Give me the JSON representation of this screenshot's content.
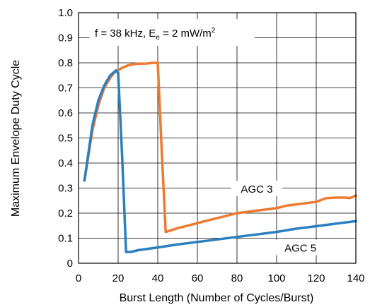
{
  "chart_data": {
    "type": "line",
    "title": "",
    "annotation": {
      "prefix": "f = 38 kHz, E",
      "sub": "e",
      "mid": " = 2 mW/m",
      "sup": "2"
    },
    "xlabel": "Burst Length (Number of Cycles/Burst)",
    "ylabel": "Maximum Envelope Duty Cycle",
    "xlim": [
      0,
      140
    ],
    "ylim": [
      0,
      1.0
    ],
    "grid": true,
    "x_ticks": [
      "0",
      "20",
      "40",
      "60",
      "80",
      "100",
      "120",
      "140"
    ],
    "y_ticks": [
      "0",
      "0.1",
      "0.2",
      "0.3",
      "0.4",
      "0.5",
      "0.6",
      "0.7",
      "0.8",
      "0.9",
      "1.0"
    ],
    "series": [
      {
        "name": "AGC 3",
        "color": "#ee7a30",
        "x": [
          3,
          5,
          7,
          10,
          13,
          16,
          18,
          20,
          22,
          25,
          28,
          30,
          34,
          38,
          40,
          42,
          44,
          46,
          50,
          55,
          60,
          65,
          70,
          75,
          80,
          85,
          90,
          95,
          100,
          105,
          110,
          115,
          120,
          125,
          130,
          135,
          137,
          140
        ],
        "y": [
          0.33,
          0.43,
          0.53,
          0.63,
          0.7,
          0.74,
          0.76,
          0.77,
          0.78,
          0.79,
          0.795,
          0.796,
          0.797,
          0.8,
          0.8,
          0.45,
          0.125,
          0.13,
          0.14,
          0.15,
          0.16,
          0.17,
          0.18,
          0.19,
          0.2,
          0.205,
          0.21,
          0.215,
          0.22,
          0.23,
          0.235,
          0.24,
          0.245,
          0.26,
          0.262,
          0.262,
          0.26,
          0.27
        ]
      },
      {
        "name": "AGC 5",
        "color": "#2a7fc0",
        "x": [
          3,
          5,
          7,
          10,
          13,
          16,
          19,
          20,
          22,
          24,
          26,
          28,
          30,
          40,
          50,
          60,
          70,
          80,
          90,
          100,
          110,
          120,
          130,
          140
        ],
        "y": [
          0.33,
          0.44,
          0.55,
          0.65,
          0.71,
          0.75,
          0.77,
          0.76,
          0.43,
          0.045,
          0.045,
          0.048,
          0.052,
          0.063,
          0.075,
          0.085,
          0.095,
          0.105,
          0.115,
          0.125,
          0.138,
          0.148,
          0.158,
          0.168
        ]
      }
    ],
    "series_labels": [
      {
        "text": "AGC 3",
        "x": 90.0,
        "y": 0.29
      },
      {
        "text": "AGC 5",
        "x": 112.0,
        "y": 0.055
      }
    ]
  }
}
